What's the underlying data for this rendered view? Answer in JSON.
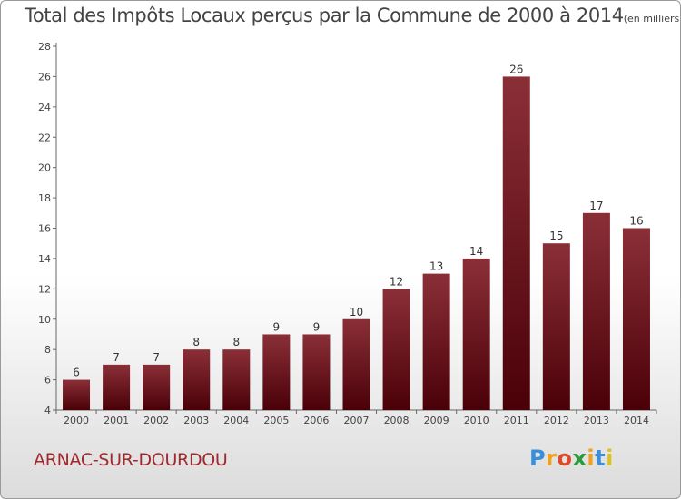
{
  "chart_data": {
    "type": "bar",
    "title": "Total des Impôts Locaux perçus par la Commune de 2000 à 2014",
    "title_unit": "(en milliers d'€)",
    "categories": [
      "2000",
      "2001",
      "2002",
      "2003",
      "2004",
      "2005",
      "2006",
      "2007",
      "2008",
      "2009",
      "2010",
      "2011",
      "2012",
      "2013",
      "2014"
    ],
    "values": [
      6,
      7,
      7,
      8,
      8,
      9,
      9,
      10,
      12,
      13,
      14,
      26,
      15,
      17,
      16
    ],
    "xlabel": "",
    "ylabel": "",
    "ylim": [
      4,
      28
    ],
    "yticks": [
      4,
      6,
      8,
      10,
      12,
      14,
      16,
      18,
      20,
      22,
      24,
      26,
      28
    ],
    "grid": false,
    "bar_color_top": "#8b2f37",
    "bar_color_bottom": "#4a0008"
  },
  "footer": {
    "commune": "ARNAC-SUR-DOURDOU"
  },
  "logo": {
    "letters": [
      "P",
      "r",
      "o",
      "x",
      "i",
      "t",
      "i"
    ],
    "colors": [
      "#3b8fd9",
      "#f0a020",
      "#e04a2a",
      "#2a9a3a",
      "#f0a020",
      "#3b8fd9",
      "#e0c020"
    ]
  }
}
